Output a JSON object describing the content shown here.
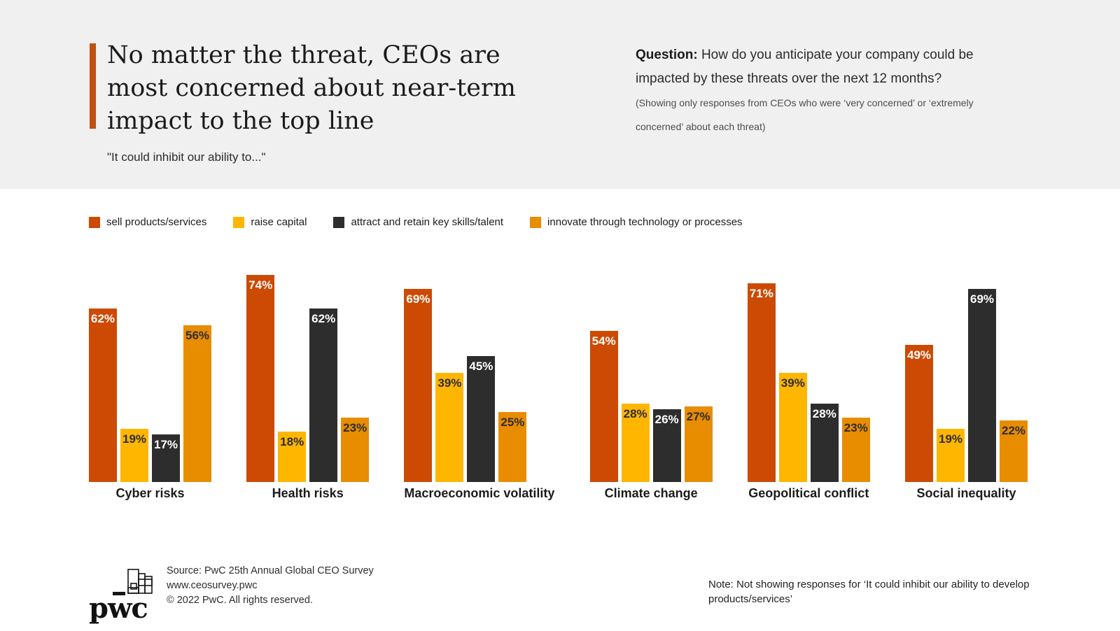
{
  "header": {
    "accent_color": "#C2500E",
    "title_lines": [
      "No matter the threat, CEOs are",
      "most concerned about near-term",
      "impact to the top line"
    ],
    "subtitle": "\"It could inhibit our ability to...\"",
    "question": {
      "bold_label": "Question:",
      "line1_rest": " How do you anticipate your company could be",
      "line2": "impacted by these threats over the next 12 months?",
      "note_lines": [
        "(Showing only responses from CEOs who were ‘very concerned’ or ‘extremely",
        "concerned’ about each threat)"
      ]
    }
  },
  "chart_data": {
    "type": "bar",
    "unit": "%",
    "ylim": [
      0,
      100
    ],
    "grid": false,
    "legend_position": "top",
    "categories": [
      "Cyber risks",
      "Health risks",
      "Macroeconomic volatility",
      "Climate change",
      "Geopolitical conflict",
      "Social inequality"
    ],
    "series": [
      {
        "name": "sell products/services",
        "color": "#CC4A04",
        "label_color": "#ffffff",
        "values": [
          62,
          74,
          69,
          54,
          71,
          49
        ]
      },
      {
        "name": "raise capital",
        "color": "#FFB600",
        "label_color": "#2d2d2d",
        "values": [
          19,
          18,
          39,
          28,
          39,
          19
        ]
      },
      {
        "name": "attract and retain key skills/talent",
        "color": "#2D2D2D",
        "label_color": "#ffffff",
        "values": [
          17,
          62,
          45,
          26,
          28,
          69
        ]
      },
      {
        "name": "innovate through technology or processes",
        "color": "#E88C00",
        "label_color": "#2d2d2d",
        "values": [
          56,
          23,
          25,
          27,
          23,
          22
        ]
      }
    ]
  },
  "footer": {
    "logo_text": "pwc",
    "source_lines": [
      "Source: PwC 25th Annual Global CEO Survey",
      "www.ceosurvey.pwc",
      "© 2022 PwC. All rights reserved."
    ],
    "note_lines": [
      "Note: Not showing responses for ‘It could inhibit our ability to develop",
      "products/services’"
    ]
  }
}
